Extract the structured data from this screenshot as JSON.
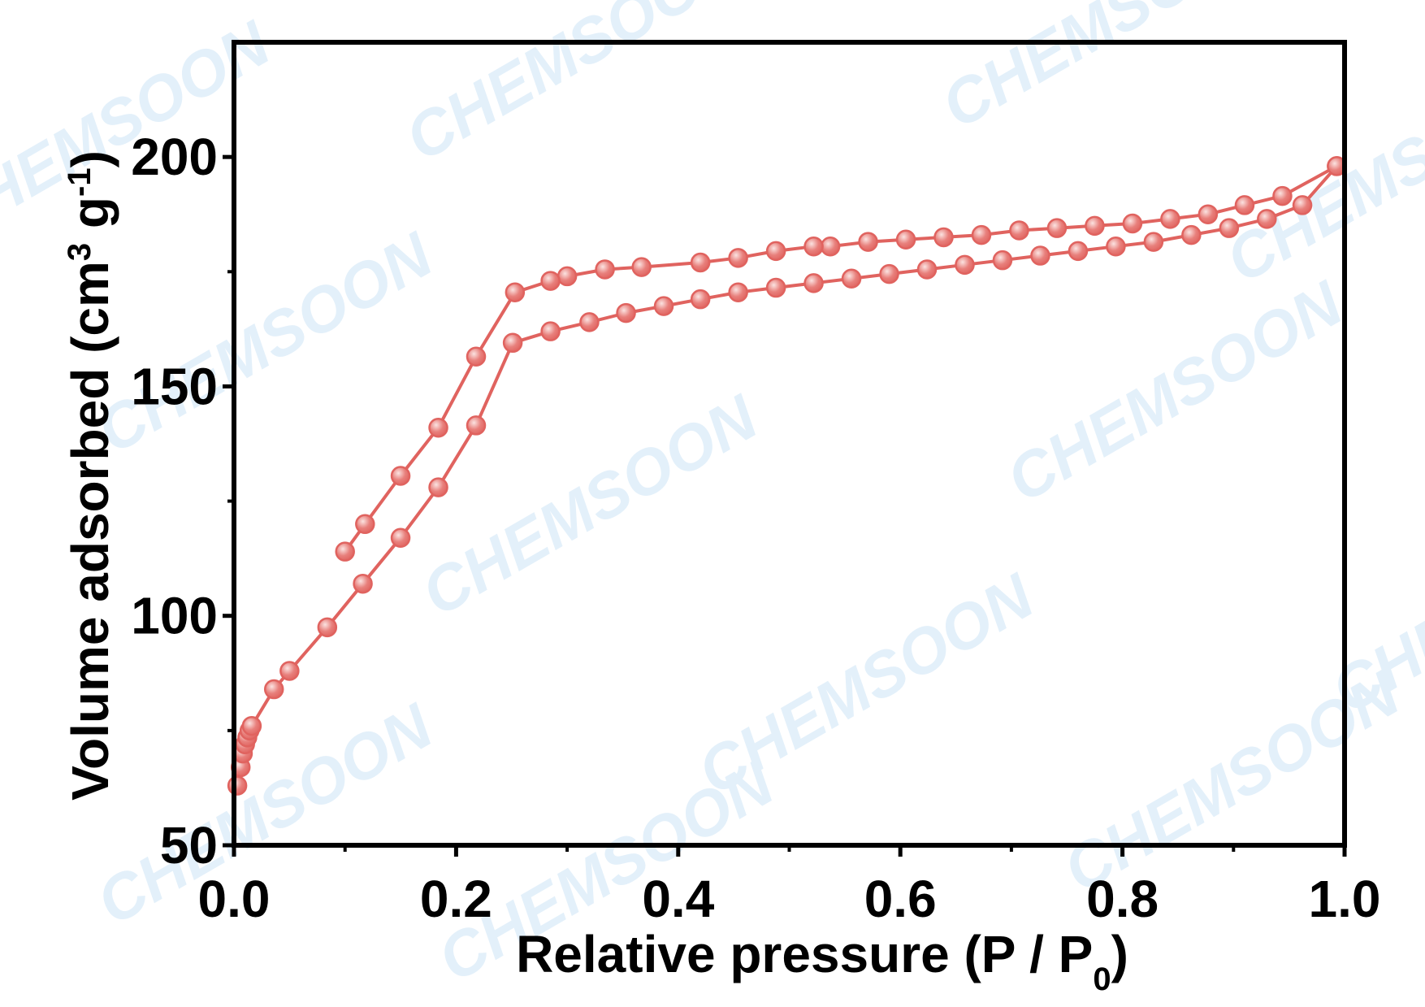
{
  "watermark": {
    "text": "CHEMSOON",
    "color": "#e3f0fa"
  },
  "chart_data": {
    "type": "line",
    "title": "",
    "xlabel": "Relative pressure (P / P",
    "xlabel_sub": "0",
    "xlabel_end": ")",
    "ylabel": "Volume adsorbed (cm",
    "ylabel_sup1": "3",
    "ylabel_mid": " g",
    "ylabel_sup2": "-1",
    "ylabel_end": ")",
    "xlim": [
      0.0,
      1.0
    ],
    "ylim": [
      50,
      225
    ],
    "xticks": [
      0.0,
      0.2,
      0.4,
      0.6,
      0.8,
      1.0
    ],
    "xtick_labels": [
      "0.0",
      "0.2",
      "0.4",
      "0.6",
      "0.8",
      "1.0"
    ],
    "xminor": [
      0.1,
      0.3,
      0.5,
      0.7,
      0.9
    ],
    "yticks": [
      50,
      100,
      150,
      200
    ],
    "ytick_labels": [
      "50",
      "100",
      "150",
      "200"
    ],
    "yminor": [
      75,
      125,
      175
    ],
    "line_color": "#e0635f",
    "marker_fill": "#e8807c",
    "marker_highlight": "#fbe3e1",
    "legend": [],
    "series": [
      {
        "name": "adsorption",
        "points": [
          [
            0.003,
            63
          ],
          [
            0.006,
            67
          ],
          [
            0.008,
            70
          ],
          [
            0.01,
            72
          ],
          [
            0.012,
            73.5
          ],
          [
            0.014,
            75
          ],
          [
            0.016,
            76
          ],
          [
            0.036,
            84
          ],
          [
            0.05,
            88
          ],
          [
            0.084,
            97.5
          ],
          [
            0.116,
            107
          ],
          [
            0.15,
            117
          ],
          [
            0.184,
            128
          ],
          [
            0.218,
            141.5
          ],
          [
            0.251,
            159.5
          ],
          [
            0.285,
            162
          ],
          [
            0.32,
            164
          ],
          [
            0.353,
            166
          ],
          [
            0.387,
            167.5
          ],
          [
            0.42,
            169
          ],
          [
            0.454,
            170.5
          ],
          [
            0.488,
            171.5
          ],
          [
            0.522,
            172.5
          ],
          [
            0.556,
            173.5
          ],
          [
            0.59,
            174.5
          ],
          [
            0.624,
            175.5
          ],
          [
            0.658,
            176.5
          ],
          [
            0.692,
            177.5
          ],
          [
            0.726,
            178.5
          ],
          [
            0.76,
            179.5
          ],
          [
            0.794,
            180.5
          ],
          [
            0.828,
            181.5
          ],
          [
            0.862,
            183
          ],
          [
            0.896,
            184.5
          ],
          [
            0.93,
            186.5
          ],
          [
            0.962,
            189.5
          ],
          [
            0.993,
            198
          ]
        ]
      },
      {
        "name": "desorption",
        "points": [
          [
            0.993,
            198
          ],
          [
            0.944,
            191.5
          ],
          [
            0.91,
            189.5
          ],
          [
            0.877,
            187.5
          ],
          [
            0.843,
            186.5
          ],
          [
            0.809,
            185.5
          ],
          [
            0.775,
            185
          ],
          [
            0.741,
            184.5
          ],
          [
            0.707,
            184
          ],
          [
            0.673,
            183
          ],
          [
            0.639,
            182.5
          ],
          [
            0.605,
            182
          ],
          [
            0.571,
            181.5
          ],
          [
            0.537,
            180.5
          ],
          [
            0.522,
            180.5
          ],
          [
            0.488,
            179.5
          ],
          [
            0.454,
            178
          ],
          [
            0.42,
            177
          ],
          [
            0.367,
            176
          ],
          [
            0.334,
            175.5
          ],
          [
            0.3,
            174
          ],
          [
            0.285,
            173
          ],
          [
            0.253,
            170.5
          ],
          [
            0.218,
            156.5
          ],
          [
            0.184,
            141
          ],
          [
            0.15,
            130.5
          ],
          [
            0.118,
            120
          ],
          [
            0.1,
            114
          ]
        ]
      }
    ]
  }
}
